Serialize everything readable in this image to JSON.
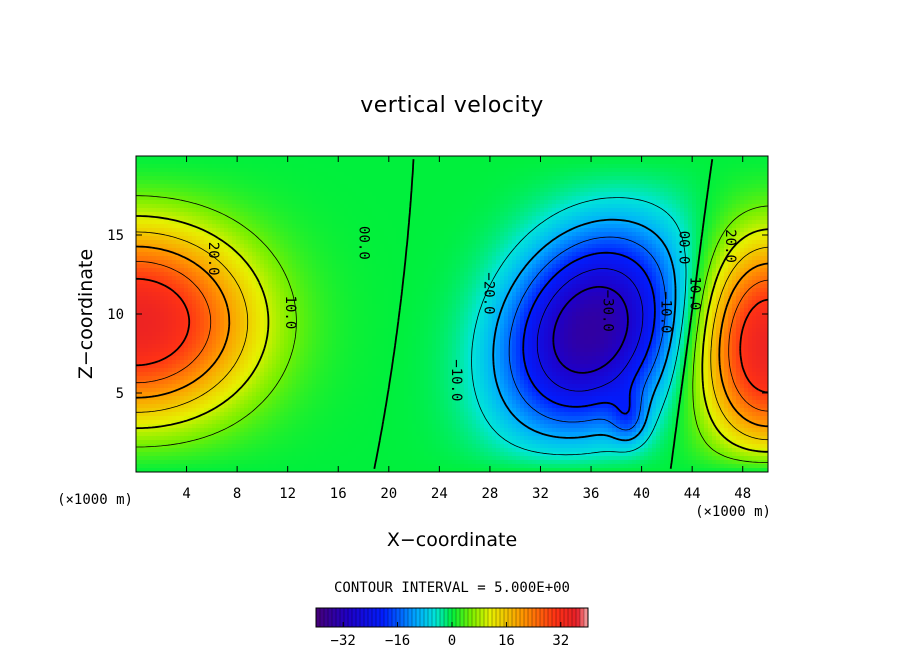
{
  "chart_data": {
    "type": "contour",
    "title": "vertical velocity",
    "xlabel": "X−coordinate",
    "ylabel": "Z−coordinate",
    "x_unit_left": "(×1000 m)",
    "x_unit_right": "(×1000 m)",
    "xlim": [
      0,
      50
    ],
    "ylim": [
      0,
      20
    ],
    "x_ticks": [
      4,
      8,
      12,
      16,
      20,
      24,
      28,
      32,
      36,
      40,
      44,
      48
    ],
    "y_ticks": [
      5,
      10,
      15
    ],
    "contour_interval_text": "CONTOUR INTERVAL = 5.000E+00",
    "contour_interval": 5,
    "contour_labels": [
      {
        "text": "20.0",
        "x": 6.1,
        "z": 13.5
      },
      {
        "text": "10.0",
        "x": 12.2,
        "z": 10.1
      },
      {
        "text": "00.0",
        "x": 18.0,
        "z": 14.5
      },
      {
        "text": "−20.0",
        "x": 27.9,
        "z": 11.3
      },
      {
        "text": "−10.0",
        "x": 25.3,
        "z": 5.8
      },
      {
        "text": "−30.0",
        "x": 37.3,
        "z": 10.2
      },
      {
        "text": "−10.0",
        "x": 41.9,
        "z": 10.1
      },
      {
        "text": "00.0",
        "x": 43.3,
        "z": 14.2
      },
      {
        "text": "10.0",
        "x": 44.2,
        "z": 11.3
      },
      {
        "text": "20.0",
        "x": 47.0,
        "z": 14.3
      }
    ],
    "colorbar": {
      "min": -40,
      "max": 40,
      "ticks": [
        -32,
        -16,
        0,
        16,
        32
      ],
      "tick_labels": [
        "−32",
        "−16",
        "0",
        "16",
        "32"
      ]
    },
    "features": [
      {
        "name": "left updraft",
        "center_x": 0,
        "center_z": 9.5,
        "peak": 35
      },
      {
        "name": "central downdraft",
        "center_x": 36,
        "center_z": 9,
        "peak": -35
      },
      {
        "name": "right updraft",
        "center_x": 50,
        "center_z": 8,
        "peak": 35
      }
    ]
  }
}
